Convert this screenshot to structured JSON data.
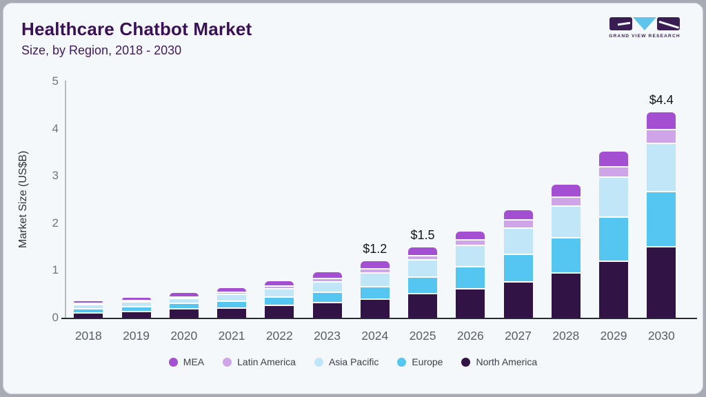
{
  "header": {
    "title": "Healthcare Chatbot Market",
    "subtitle": "Size, by Region, 2018 - 2030",
    "logo_text": "GRAND VIEW RESEARCH"
  },
  "chart_data": {
    "type": "bar",
    "stacked": true,
    "title": "Healthcare Chatbot Market Size, by Region, 2018 - 2030",
    "xlabel": "",
    "ylabel": "Market Size (US$B)",
    "ylim": [
      0,
      5
    ],
    "yticks": [
      0,
      1,
      2,
      3,
      4,
      5
    ],
    "grid": false,
    "legend_position": "bottom",
    "categories": [
      "2018",
      "2019",
      "2020",
      "2021",
      "2022",
      "2023",
      "2024",
      "2025",
      "2026",
      "2027",
      "2028",
      "2029",
      "2030"
    ],
    "series": [
      {
        "name": "North America",
        "color": "#321345",
        "values": [
          0.12,
          0.15,
          0.2,
          0.22,
          0.28,
          0.33,
          0.41,
          0.52,
          0.63,
          0.78,
          0.96,
          1.21,
          1.51
        ]
      },
      {
        "name": "Europe",
        "color": "#54c6f0",
        "values": [
          0.09,
          0.1,
          0.12,
          0.15,
          0.17,
          0.23,
          0.26,
          0.35,
          0.47,
          0.58,
          0.75,
          0.94,
          1.18
        ]
      },
      {
        "name": "Asia Pacific",
        "color": "#c1e6f7",
        "values": [
          0.08,
          0.1,
          0.11,
          0.14,
          0.18,
          0.22,
          0.3,
          0.37,
          0.44,
          0.55,
          0.66,
          0.84,
          1.02
        ]
      },
      {
        "name": "Latin America",
        "color": "#cfa4e9",
        "values": [
          0.02,
          0.02,
          0.03,
          0.04,
          0.05,
          0.06,
          0.08,
          0.09,
          0.12,
          0.18,
          0.2,
          0.22,
          0.28
        ]
      },
      {
        "name": "MEA",
        "color": "#a44fd2",
        "values": [
          0.03,
          0.05,
          0.06,
          0.08,
          0.1,
          0.12,
          0.14,
          0.15,
          0.16,
          0.19,
          0.24,
          0.3,
          0.36
        ]
      }
    ],
    "bar_labels": [
      "",
      "",
      "",
      "",
      "",
      "",
      "$1.2",
      "$1.5",
      "",
      "",
      "",
      "",
      "$4.4"
    ],
    "legend": [
      "MEA",
      "Latin America",
      "Asia Pacific",
      "Europe",
      "North America"
    ]
  }
}
